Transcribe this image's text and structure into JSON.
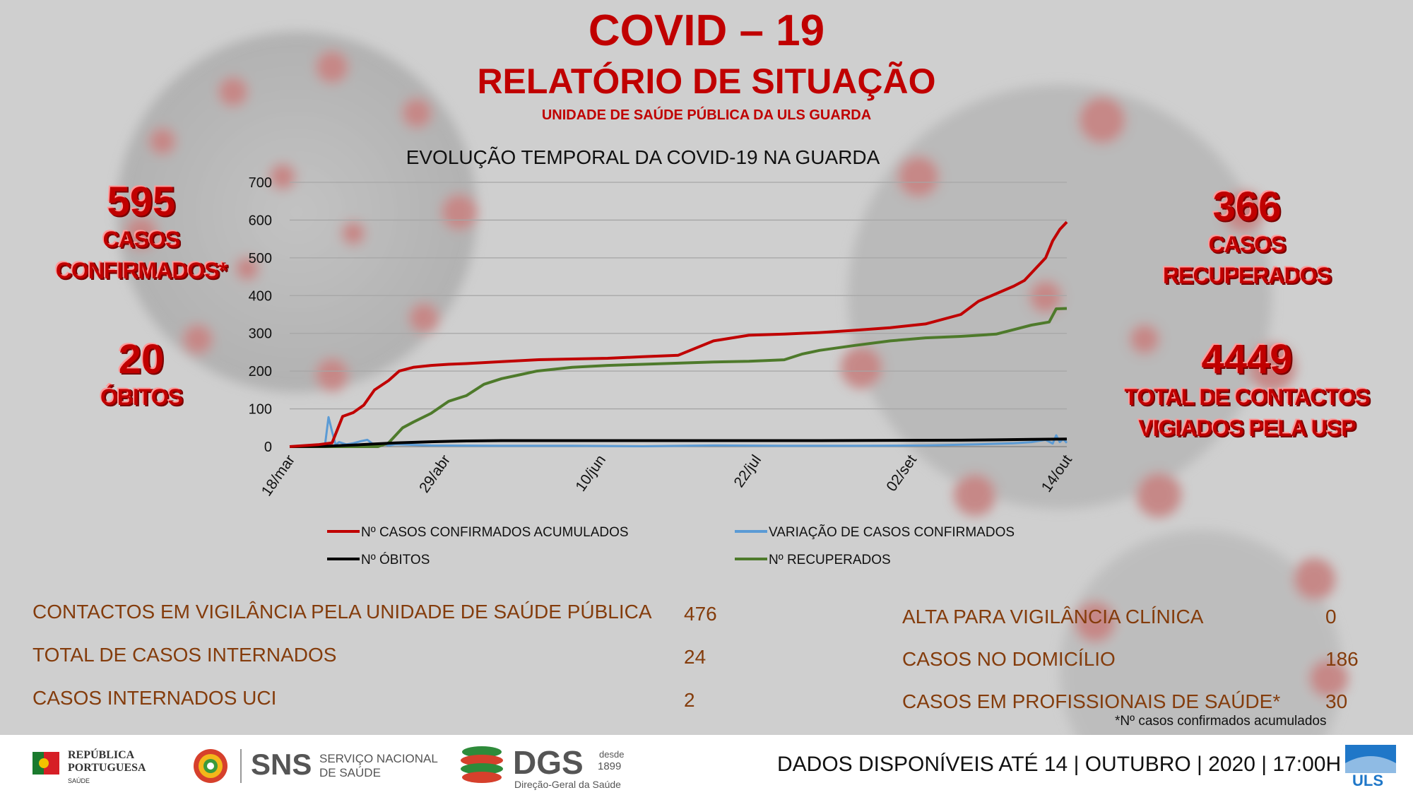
{
  "header": {
    "title": "COVID – 19",
    "subtitle": "RELATÓRIO DE SITUAÇÃO",
    "unit": "UNIDADE DE SAÚDE PÚBLICA DA ULS GUARDA"
  },
  "left_stats": {
    "confirmed_value": "595",
    "confirmed_label_1": "CASOS",
    "confirmed_label_2": "CONFIRMADOS*",
    "deaths_value": "20",
    "deaths_label": "ÓBITOS"
  },
  "right_stats": {
    "recovered_value": "366",
    "recovered_label_1": "CASOS",
    "recovered_label_2": "RECUPERADOS",
    "contacts_value": "4449",
    "contacts_label_1": "TOTAL DE CONTACTOS",
    "contacts_label_2": "VIGIADOS PELA USP"
  },
  "chart_data": {
    "type": "line",
    "title": "EVOLUÇÃO TEMPORAL DA COVID-19 NA GUARDA",
    "ylim": [
      0,
      700
    ],
    "yticks": [
      "0",
      "100",
      "200",
      "300",
      "400",
      "500",
      "600",
      "700"
    ],
    "xticks": [
      "18/mar",
      "29/abr",
      "10/jun",
      "22/jul",
      "02/set",
      "14/out"
    ],
    "series": [
      {
        "name": "Nº CASOS CONFIRMADOS ACUMULADOS",
        "color": "#c00000",
        "x": [
          0,
          8,
          12,
          15,
          18,
          21,
          24,
          28,
          31,
          35,
          40,
          45,
          50,
          60,
          70,
          80,
          90,
          100,
          110,
          120,
          130,
          140,
          150,
          160,
          170,
          180,
          190,
          195,
          200,
          205,
          208,
          211,
          214,
          216,
          218,
          220
        ],
        "y": [
          0,
          5,
          10,
          80,
          90,
          110,
          150,
          175,
          200,
          210,
          215,
          218,
          220,
          225,
          230,
          232,
          234,
          238,
          242,
          280,
          295,
          298,
          302,
          308,
          315,
          325,
          350,
          385,
          405,
          425,
          440,
          470,
          500,
          545,
          575,
          595
        ]
      },
      {
        "name": "VARIAÇÃO DE CASOS CONFIRMADOS",
        "color": "#5b9bd5",
        "x": [
          0,
          8,
          10,
          11,
          12,
          13,
          14,
          16,
          18,
          20,
          22,
          24,
          26,
          28,
          30,
          40,
          60,
          80,
          100,
          120,
          140,
          160,
          180,
          195,
          205,
          210,
          214,
          216,
          217,
          218,
          219,
          220
        ],
        "y": [
          0,
          2,
          4,
          78,
          40,
          5,
          12,
          6,
          9,
          14,
          18,
          4,
          8,
          3,
          6,
          3,
          2,
          2,
          1,
          3,
          2,
          2,
          3,
          6,
          9,
          12,
          18,
          8,
          30,
          12,
          20,
          10
        ]
      },
      {
        "name": "Nº ÓBITOS",
        "color": "#000000",
        "x": [
          0,
          10,
          20,
          30,
          40,
          50,
          60,
          100,
          150,
          190,
          200,
          210,
          220
        ],
        "y": [
          0,
          1,
          5,
          10,
          13,
          15,
          16,
          16,
          16,
          17,
          18,
          19,
          20
        ]
      },
      {
        "name": "Nº RECUPERADOS",
        "color": "#4e7a2b",
        "x": [
          0,
          25,
          28,
          32,
          35,
          40,
          45,
          50,
          55,
          60,
          65,
          70,
          80,
          90,
          100,
          110,
          120,
          130,
          140,
          145,
          150,
          160,
          170,
          180,
          190,
          200,
          205,
          210,
          215,
          217,
          220
        ],
        "y": [
          0,
          0,
          10,
          50,
          65,
          88,
          120,
          135,
          165,
          180,
          190,
          200,
          210,
          215,
          218,
          221,
          224,
          226,
          230,
          245,
          255,
          268,
          280,
          288,
          292,
          298,
          310,
          322,
          330,
          365,
          366
        ]
      }
    ]
  },
  "bottom_left": [
    {
      "label": "CONTACTOS EM VIGILÂNCIA PELA UNIDADE DE SAÚDE PÚBLICA",
      "value": "476"
    },
    {
      "label": "TOTAL DE CASOS INTERNADOS",
      "value": "24"
    },
    {
      "label": "CASOS INTERNADOS UCI",
      "value": "2"
    }
  ],
  "bottom_right": [
    {
      "label": "ALTA PARA VIGILÂNCIA CLÍNICA",
      "value": "0"
    },
    {
      "label": "CASOS NO DOMICÍLIO",
      "value": "186"
    },
    {
      "label": "CASOS EM PROFISSIONAIS DE SAÚDE*",
      "value": "30"
    }
  ],
  "footnote": "*Nº casos confirmados acumulados",
  "footer": {
    "date_text": "DADOS DISPONÍVEIS ATÉ 14 | OUTUBRO | 2020 | 17:00H",
    "logo_rep_1": "REPÚBLICA",
    "logo_rep_2": "PORTUGUESA",
    "logo_rep_3": "SAÚDE",
    "logo_sns": "SNS",
    "logo_sns_sub_1": "SERVIÇO NACIONAL",
    "logo_sns_sub_2": "DE SAÚDE",
    "logo_dgs": "DGS",
    "logo_dgs_since_1": "desde",
    "logo_dgs_since_2": "1899",
    "logo_dgs_sub": "Direção-Geral da Saúde",
    "logo_uls": "ULS"
  }
}
